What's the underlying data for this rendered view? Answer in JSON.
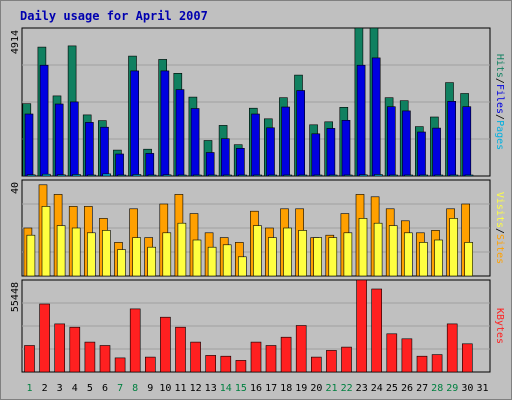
{
  "chart_data": {
    "type": "bar",
    "title": "Daily usage for April 2007",
    "colors": {
      "background": "#c0c0c0",
      "title": "#0000b0",
      "hits": "#108060",
      "files": "#0000e0",
      "pages": "#00b0e0",
      "visits": "#ffa000",
      "sites": "#ffff40",
      "kbytes": "#ff2020",
      "weekday_label": "#008040",
      "axis_label": "#000000"
    },
    "categories": [
      1,
      2,
      3,
      4,
      5,
      6,
      7,
      8,
      9,
      10,
      11,
      12,
      13,
      14,
      15,
      16,
      17,
      18,
      19,
      20,
      21,
      22,
      23,
      24,
      25,
      26,
      27,
      28,
      29,
      30,
      31
    ],
    "weekend_days": [
      1,
      7,
      8,
      14,
      15,
      21,
      22,
      28,
      29
    ],
    "panels": [
      {
        "name": "requests",
        "ymax_label": "4914",
        "ylim": [
          0,
          4914
        ],
        "side_labels": [
          {
            "text": "Pages",
            "color": "#00b0e0"
          },
          {
            "text": "/",
            "color": "#000000"
          },
          {
            "text": "Files",
            "color": "#0000e0"
          },
          {
            "text": "/",
            "color": "#000000"
          },
          {
            "text": "Hits",
            "color": "#108060"
          }
        ],
        "series": [
          {
            "name": "Hits",
            "color": "#108060",
            "values": [
              2400,
              4280,
              2660,
              4320,
              2030,
              1840,
              860,
              3980,
              890,
              3870,
              3410,
              2620,
              1180,
              1680,
              1040,
              2250,
              1900,
              2600,
              3350,
              1700,
              1800,
              2280,
              4914,
              4914,
              2600,
              2500,
              1640,
              1960,
              3100,
              2740,
              0
            ]
          },
          {
            "name": "Files",
            "color": "#0000e0",
            "values": [
              2060,
              3680,
              2390,
              2460,
              1780,
              1620,
              730,
              3490,
              750,
              3490,
              2870,
              2240,
              780,
              1240,
              920,
              2060,
              1600,
              2290,
              2840,
              1400,
              1580,
              1850,
              3680,
              3920,
              2300,
              2160,
              1460,
              1590,
              2480,
              2300,
              0
            ]
          },
          {
            "name": "Pages",
            "color": "#00b0e0",
            "values": [
              40,
              60,
              40,
              50,
              30,
              70,
              20,
              50,
              20,
              40,
              30,
              30,
              20,
              20,
              20,
              30,
              30,
              30,
              30,
              20,
              20,
              20,
              40,
              50,
              30,
              30,
              20,
              20,
              30,
              30,
              0
            ]
          }
        ]
      },
      {
        "name": "visitors",
        "ymax_label": "40",
        "ylim": [
          0,
          40
        ],
        "side_labels": [
          {
            "text": "Sites",
            "color": "#ffa000"
          },
          {
            "text": "/",
            "color": "#000000"
          },
          {
            "text": "Visits",
            "color": "#ffff40"
          }
        ],
        "series": [
          {
            "name": "Visits",
            "color": "#ffa000",
            "values": [
              20,
              38,
              34,
              29,
              29,
              24,
              14,
              28,
              16,
              30,
              34,
              26,
              18,
              16,
              14,
              27,
              20,
              28,
              28,
              16,
              17,
              26,
              34,
              33,
              28,
              23,
              18,
              19,
              28,
              30,
              0
            ]
          },
          {
            "name": "Sites",
            "color": "#ffff40",
            "values": [
              17,
              29,
              21,
              20,
              18,
              19,
              11,
              16,
              12,
              18,
              22,
              15,
              12,
              13,
              8,
              21,
              16,
              20,
              19,
              16,
              16,
              18,
              24,
              22,
              21,
              18,
              14,
              15,
              24,
              14,
              0
            ]
          }
        ]
      },
      {
        "name": "kbytes",
        "ymax_label": "55448",
        "ylim": [
          0,
          55448
        ],
        "side_labels": [
          {
            "text": "KBytes",
            "color": "#ff2020"
          }
        ],
        "series": [
          {
            "name": "KBytes",
            "color": "#ff2020",
            "values": [
              16000,
              41000,
              29000,
              27000,
              18000,
              16000,
              8500,
              38000,
              9000,
              33000,
              27000,
              18000,
              10000,
              9500,
              7000,
              18000,
              16000,
              21000,
              28000,
              9000,
              13000,
              15000,
              55448,
              50000,
              23000,
              20000,
              9500,
              10500,
              29000,
              17000,
              0
            ]
          }
        ]
      }
    ]
  }
}
